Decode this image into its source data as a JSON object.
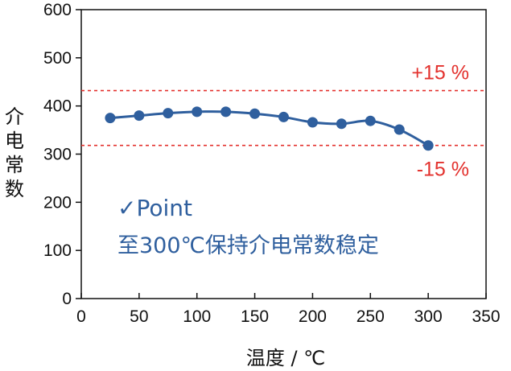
{
  "chart_data": {
    "type": "line",
    "x": [
      25,
      50,
      75,
      100,
      125,
      150,
      175,
      200,
      225,
      250,
      275,
      300
    ],
    "series": [
      {
        "values": [
          375,
          380,
          385,
          388,
          388,
          384,
          377,
          366,
          363,
          369,
          351,
          318
        ]
      }
    ],
    "xlabel": "温度 / ℃",
    "ylabel": "介电常数",
    "xlim": [
      0,
      350
    ],
    "ylim": [
      0,
      600
    ],
    "xticks": [
      "0",
      "50",
      "100",
      "150",
      "200",
      "250",
      "300",
      "350"
    ],
    "yticks": [
      "0",
      "100",
      "200",
      "300",
      "400",
      "500",
      "600"
    ],
    "reference_lines": [
      {
        "label": "+15 %",
        "value": 432
      },
      {
        "label": "-15 %",
        "value": 318
      }
    ],
    "annotations": [
      "✓Point",
      "至300℃保持介电常数稳定"
    ],
    "grid": false,
    "colors": {
      "series": "#2f5f9e",
      "reference": "#e3312d",
      "axis": "#111111"
    }
  }
}
